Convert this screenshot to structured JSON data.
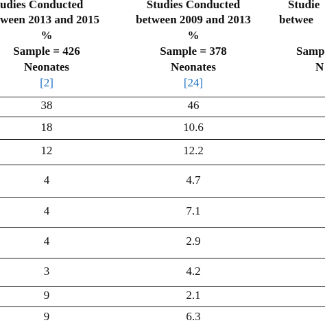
{
  "table": {
    "columns": [
      {
        "header_lines": [
          {
            "text": "udies Conducted",
            "x": 0,
            "anchor": "start"
          },
          {
            "text": "ween 2013 and 2015",
            "x": 0,
            "anchor": "start"
          },
          {
            "text": "%",
            "x": 68,
            "anchor": "middle"
          },
          {
            "text": "Sample = 426",
            "x": 68,
            "anchor": "middle"
          },
          {
            "text": "Neonates",
            "x": 68,
            "anchor": "middle"
          }
        ],
        "ref": "[2]"
      },
      {
        "header_lines": [
          {
            "text": "Studies Conducted",
            "x": 282,
            "anchor": "middle"
          },
          {
            "text": "between 2009 and 2013",
            "x": 282,
            "anchor": "middle"
          },
          {
            "text": "%",
            "x": 282,
            "anchor": "middle"
          },
          {
            "text": "Sample = 378",
            "x": 282,
            "anchor": "middle"
          },
          {
            "text": "Neonates",
            "x": 282,
            "anchor": "middle"
          }
        ],
        "ref": "[24]"
      },
      {
        "header_lines": [
          {
            "text": "Studie",
            "x": 420,
            "anchor": "start"
          },
          {
            "text": "betwee",
            "x": 407,
            "anchor": "start"
          },
          {
            "text": "",
            "x": 0,
            "anchor": "start"
          },
          {
            "text": "Samp",
            "x": 432,
            "anchor": "start"
          },
          {
            "text": "N",
            "x": 460,
            "anchor": "start"
          }
        ],
        "ref": ""
      }
    ],
    "rows": [
      [
        "38",
        "46"
      ],
      [
        "18",
        "10.6"
      ],
      [
        "12",
        "12.2"
      ],
      [
        "4",
        "4.7"
      ],
      [
        "4",
        "7.1"
      ],
      [
        "4",
        "2.9"
      ],
      [
        "3",
        "4.2"
      ],
      [
        "9",
        "2.1"
      ],
      [
        "9",
        "6.3"
      ]
    ]
  }
}
